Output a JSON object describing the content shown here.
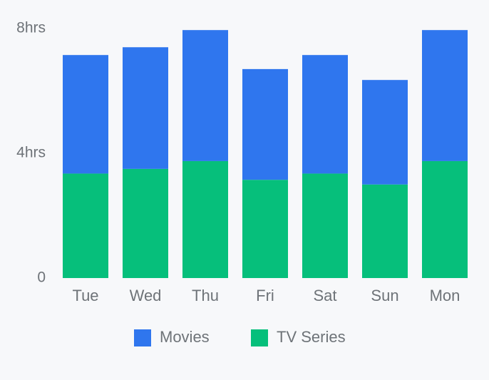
{
  "chart_data": {
    "type": "bar",
    "stacked": true,
    "categories": [
      "Tue",
      "Wed",
      "Thu",
      "Fri",
      "Sat",
      "Sun",
      "Mon"
    ],
    "series": [
      {
        "name": "TV Series",
        "color": "#06bf7b",
        "values": [
          3.35,
          3.5,
          3.75,
          3.15,
          3.35,
          3.0,
          3.75
        ]
      },
      {
        "name": "Movies",
        "color": "#2f76ee",
        "values": [
          3.8,
          3.9,
          4.2,
          3.55,
          3.8,
          3.35,
          4.2
        ]
      }
    ],
    "ylim": [
      0,
      8
    ],
    "yticks": [
      {
        "value": 0,
        "label": "0"
      },
      {
        "value": 4,
        "label": "4hrs"
      },
      {
        "value": 8,
        "label": "8hrs"
      }
    ],
    "title": "",
    "xlabel": "",
    "ylabel": "",
    "legend": {
      "placement": "bottom-center",
      "entries": [
        "Movies",
        "TV Series"
      ]
    },
    "grid": false
  }
}
